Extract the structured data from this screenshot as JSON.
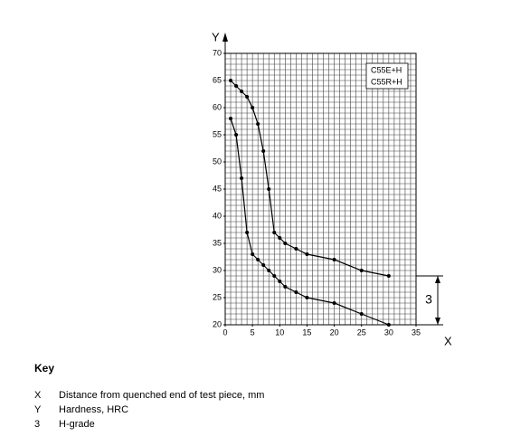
{
  "chart_data": {
    "type": "line",
    "xlabel": "X",
    "ylabel": "Y",
    "xlim": [
      0,
      35
    ],
    "ylim": [
      20,
      70
    ],
    "xticks": [
      0,
      5,
      10,
      15,
      20,
      25,
      30,
      35
    ],
    "yticks": [
      20,
      25,
      30,
      35,
      40,
      45,
      50,
      55,
      60,
      65,
      70
    ],
    "grid": true,
    "grid_step": [
      1,
      1
    ],
    "grades": [
      "C55E+H",
      "C55R+H"
    ],
    "series": [
      {
        "color": "#000000",
        "x": [
          1,
          2,
          3,
          4,
          5,
          6,
          7,
          8,
          9,
          10,
          11,
          13,
          15,
          20,
          25,
          30
        ],
        "values": [
          65,
          64,
          63,
          62,
          60,
          57,
          52,
          45,
          37,
          36,
          35,
          34,
          33,
          32,
          30,
          29
        ]
      },
      {
        "color": "#000000",
        "x": [
          1,
          2,
          3,
          4,
          5,
          6,
          7,
          8,
          9,
          10,
          11,
          13,
          15,
          20,
          25,
          30
        ],
        "values": [
          58,
          55,
          47,
          37,
          33,
          32,
          31,
          30,
          29,
          28,
          27,
          26,
          25,
          24,
          22,
          20
        ]
      }
    ],
    "annotation": {
      "label": "3",
      "range": [
        20,
        29
      ]
    }
  },
  "key": {
    "title": "Key",
    "items": [
      {
        "symbol": "X",
        "text": "Distance from quenched end of test piece, mm"
      },
      {
        "symbol": "Y",
        "text": "Hardness, HRC"
      },
      {
        "symbol": "3",
        "text": "H-grade"
      }
    ]
  }
}
